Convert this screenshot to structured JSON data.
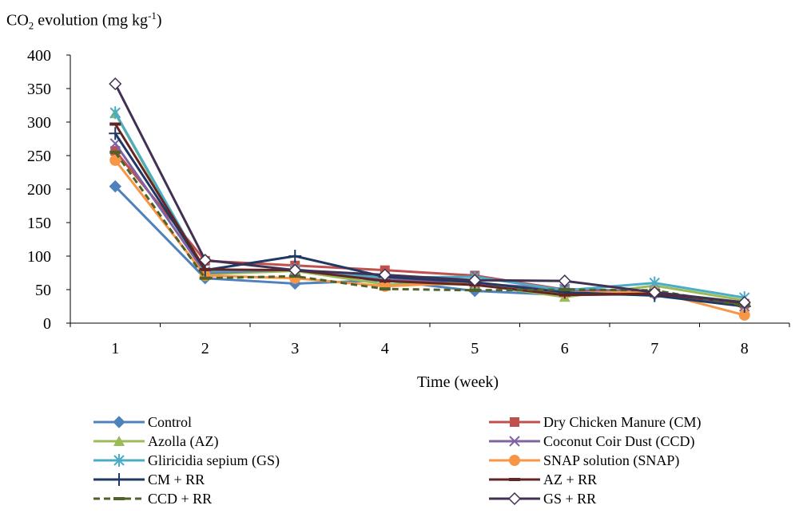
{
  "chart_data": {
    "type": "line",
    "title": "",
    "ylabel": {
      "pre": "CO",
      "sub": "2",
      "mid": " evolution (mg kg",
      "sup": "-1",
      "post": ")"
    },
    "xlabel": "Time (week)",
    "ylim": [
      0,
      400
    ],
    "yticks": [
      "0",
      "50",
      "100",
      "150",
      "200",
      "250",
      "300",
      "350",
      "400"
    ],
    "x": [
      1,
      2,
      3,
      4,
      5,
      6,
      7,
      8
    ],
    "xticks": [
      "1",
      "2",
      "3",
      "4",
      "5",
      "6",
      "7",
      "8"
    ],
    "legend_position": "bottom, two columns",
    "series": [
      {
        "name": "Control",
        "color": "#4F81BD",
        "marker": "diamond-filled",
        "dash": "solid",
        "values": [
          204,
          67,
          59,
          64,
          48,
          42,
          43,
          31
        ]
      },
      {
        "name": "Dry Chicken Manure (CM)",
        "color": "#C0504D",
        "marker": "square",
        "dash": "solid",
        "values": [
          257,
          93,
          86,
          79,
          71,
          50,
          45,
          29
        ]
      },
      {
        "name": "Azolla (AZ)",
        "color": "#9BBB59",
        "marker": "triangle",
        "dash": "solid",
        "values": [
          313,
          73,
          78,
          58,
          58,
          39,
          56,
          34
        ]
      },
      {
        "name": "Coconut Coir Dust (CCD)",
        "color": "#8064A2",
        "marker": "x",
        "dash": "solid",
        "values": [
          268,
          75,
          80,
          66,
          59,
          51,
          47,
          25
        ]
      },
      {
        "name": "Gliricidia sepium (GS)",
        "color": "#4BACC6",
        "marker": "asterisk",
        "dash": "solid",
        "values": [
          314,
          77,
          80,
          68,
          69,
          49,
          60,
          38
        ]
      },
      {
        "name": "SNAP solution (SNAP)",
        "color": "#F79646",
        "marker": "circle",
        "dash": "solid",
        "values": [
          243,
          71,
          67,
          55,
          61,
          45,
          47,
          12
        ]
      },
      {
        "name": "CM + RR",
        "color": "#1F3864",
        "marker": "plus",
        "dash": "solid",
        "values": [
          283,
          79,
          100,
          69,
          61,
          46,
          41,
          25
        ]
      },
      {
        "name": "AZ + RR",
        "color": "#632523",
        "marker": "dash",
        "dash": "solid",
        "values": [
          297,
          80,
          79,
          63,
          57,
          42,
          44,
          30
        ]
      },
      {
        "name": "CCD + RR",
        "color": "#4F6228",
        "marker": "dash",
        "dash": "dashed",
        "values": [
          255,
          67,
          70,
          51,
          49,
          50,
          49,
          26
        ]
      },
      {
        "name": "GS + RR",
        "color": "#403152",
        "marker": "diamond-open",
        "dash": "solid",
        "values": [
          357,
          94,
          79,
          72,
          64,
          63,
          46,
          31
        ]
      }
    ]
  }
}
